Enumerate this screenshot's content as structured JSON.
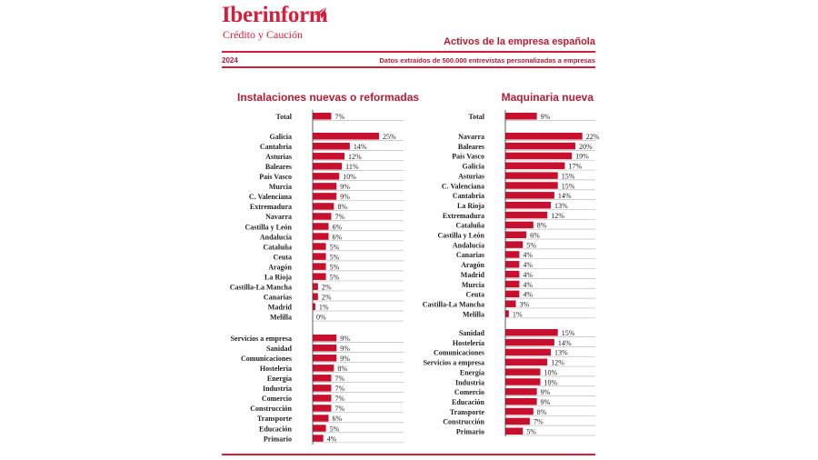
{
  "header": {
    "brand": "Iberinform",
    "subtitle": "Crédito y Caución",
    "report_title": "Activos de la empresa española",
    "year": "2024",
    "source": "Datos extraídos de 500.000 entrevistas personalizadas a empresas",
    "logo_icon": "plane-icon"
  },
  "colors": {
    "accent": "#d21f3c",
    "bar": "#c8102e",
    "text": "#222222"
  },
  "chart_data": [
    {
      "type": "bar",
      "orientation": "horizontal",
      "title": "Instalaciones nuevas o reformadas",
      "unit": "%",
      "groups": [
        {
          "name": "total",
          "categories": [
            "Total"
          ],
          "values": [
            7
          ]
        },
        {
          "name": "regiones",
          "categories": [
            "Galicia",
            "Cantabria",
            "Asturias",
            "Baleares",
            "País Vasco",
            "Murcia",
            "C. Valenciana",
            "Extremadura",
            "Navarra",
            "Castilla y León",
            "Andalucía",
            "Cataluña",
            "Ceuta",
            "Aragón",
            "La Rioja",
            "Castilla-La Mancha",
            "Canarias",
            "Madrid",
            "Melilla"
          ],
          "values": [
            25,
            14,
            12,
            11,
            10,
            9,
            9,
            8,
            7,
            6,
            6,
            5,
            5,
            5,
            5,
            2,
            2,
            1,
            0
          ]
        },
        {
          "name": "sectores",
          "categories": [
            "Servicios a empresa",
            "Sanidad",
            "Comunicaciones",
            "Hostelería",
            "Energía",
            "Industria",
            "Comercio",
            "Construcción",
            "Transporte",
            "Educación",
            "Primario"
          ],
          "values": [
            9,
            9,
            9,
            8,
            7,
            7,
            7,
            7,
            6,
            5,
            4
          ]
        }
      ]
    },
    {
      "type": "bar",
      "orientation": "horizontal",
      "title": "Maquinaria nueva",
      "unit": "%",
      "groups": [
        {
          "name": "total",
          "categories": [
            "Total"
          ],
          "values": [
            9
          ]
        },
        {
          "name": "regiones",
          "categories": [
            "Navarra",
            "Baleares",
            "País Vasco",
            "Galicia",
            "Asturias",
            "C. Valenciana",
            "Cantabria",
            "La Rioja",
            "Extremadura",
            "Cataluña",
            "Castilla y León",
            "Andalucía",
            "Canarias",
            "Aragón",
            "Madrid",
            "Murcia",
            "Ceuta",
            "Castilla-La Mancha",
            "Melilla"
          ],
          "values": [
            22,
            20,
            19,
            17,
            15,
            15,
            14,
            13,
            12,
            8,
            6,
            5,
            4,
            4,
            4,
            4,
            4,
            3,
            1
          ]
        },
        {
          "name": "sectores",
          "categories": [
            "Sanidad",
            "Hostelería",
            "Comunicaciones",
            "Servicios a empresa",
            "Energía",
            "Industria",
            "Comercio",
            "Educación",
            "Transporte",
            "Construcción",
            "Primario"
          ],
          "values": [
            15,
            14,
            13,
            12,
            10,
            10,
            9,
            9,
            8,
            7,
            5
          ]
        }
      ]
    }
  ]
}
